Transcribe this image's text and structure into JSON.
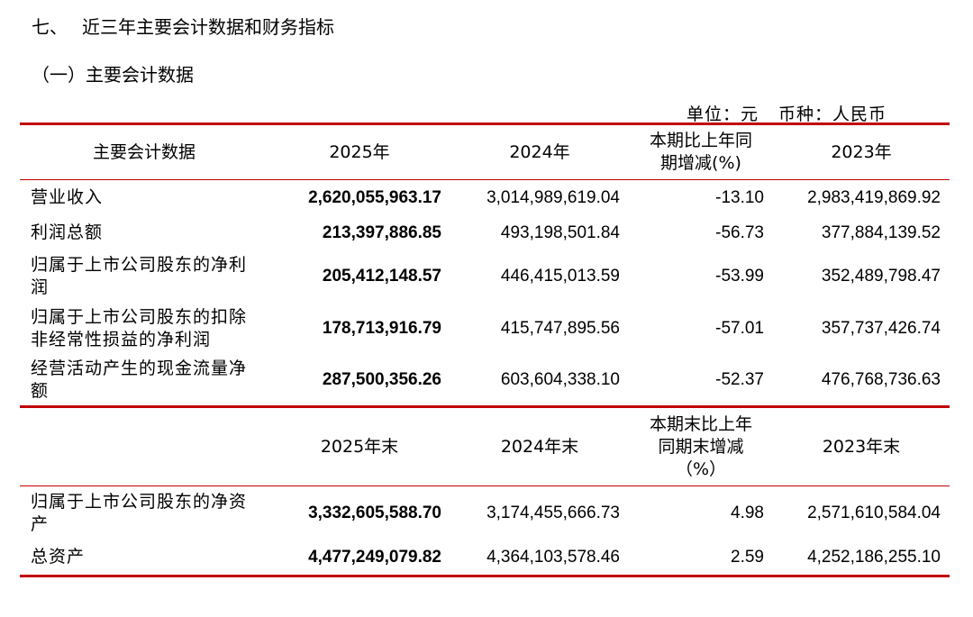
{
  "section_title": {
    "number": "七、",
    "text": "近三年主要会计数据和财务指标"
  },
  "subsection_title": "（一）主要会计数据",
  "unit_line": {
    "unit": "单位：元",
    "currency": "币种：人民币"
  },
  "table1": {
    "headers": [
      "主要会计数据",
      "2025年",
      "2024年",
      "本期比上年同期增减(%)",
      "2023年"
    ],
    "rows": [
      {
        "label": "营业收入",
        "y2025": "2,620,055,963.17",
        "y2024": "3,014,989,619.04",
        "change": "-13.10",
        "y2023": "2,983,419,869.92"
      },
      {
        "label": "利润总额",
        "y2025": "213,397,886.85",
        "y2024": "493,198,501.84",
        "change": "-56.73",
        "y2023": "377,884,139.52"
      },
      {
        "label": "归属于上市公司股东的净利润",
        "y2025": "205,412,148.57",
        "y2024": "446,415,013.59",
        "change": "-53.99",
        "y2023": "352,489,798.47"
      },
      {
        "label": "归属于上市公司股东的扣除非经常性损益的净利润",
        "y2025": "178,713,916.79",
        "y2024": "415,747,895.56",
        "change": "-57.01",
        "y2023": "357,737,426.74"
      },
      {
        "label": "经营活动产生的现金流量净额",
        "y2025": "287,500,356.26",
        "y2024": "603,604,338.10",
        "change": "-52.37",
        "y2023": "476,768,736.63"
      }
    ]
  },
  "table2": {
    "headers": [
      "",
      "2025年末",
      "2024年末",
      "本期末比上年同期末增减（%）",
      "2023年末"
    ],
    "rows": [
      {
        "label": "归属于上市公司股东的净资产",
        "y2025": "3,332,605,588.70",
        "y2024": "3,174,455,666.73",
        "change": "4.98",
        "y2023": "2,571,610,584.04"
      },
      {
        "label": "总资产",
        "y2025": "4,477,249,079.82",
        "y2024": "4,364,103,578.46",
        "change": "2.59",
        "y2023": "4,252,186,255.10"
      }
    ]
  },
  "colors": {
    "rule": "#c00000",
    "text": "#000000"
  }
}
